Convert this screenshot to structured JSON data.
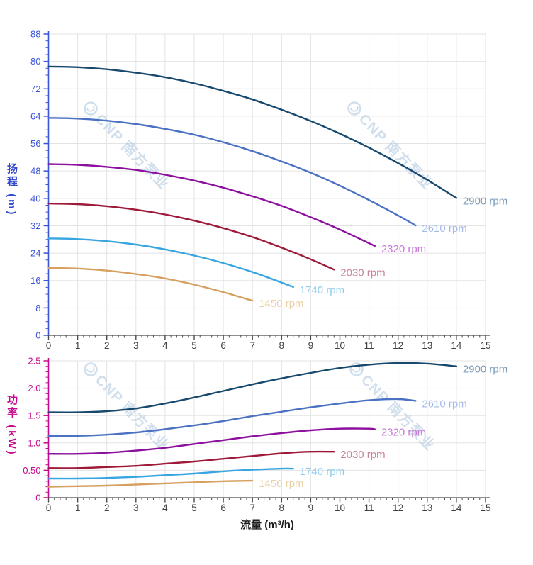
{
  "watermark": {
    "text": "CNP 南方泵业",
    "logo_icon": "cnp-logo-icon",
    "color": "rgba(172,196,223,0.55)"
  },
  "chart_data": [
    {
      "type": "line",
      "title": "",
      "ylabel": "扬程 (m)",
      "xlabel": "",
      "xlim": [
        0,
        15
      ],
      "ylim": [
        0,
        88
      ],
      "x_tick_labels": [
        "0",
        "1",
        "2",
        "3",
        "4",
        "5",
        "6",
        "7",
        "8",
        "9",
        "10",
        "11",
        "12",
        "13",
        "14",
        "15"
      ],
      "y_tick_labels": [
        "0",
        "8",
        "16",
        "24",
        "32",
        "40",
        "48",
        "56",
        "64",
        "72",
        "80",
        "88"
      ],
      "y_major_step": 8,
      "y_minor_step": 2,
      "x_minor_step": 0.2,
      "grid": true,
      "legend_position": "curve-end-labels",
      "axis_color": "#3c55d8",
      "x_axis_color": "#4a4a4a",
      "x_tick_text_color": "#3f3f3f",
      "series": [
        {
          "name": "2900 rpm",
          "color": "#17486e",
          "label_color": "#7e9cba",
          "points": [
            [
              0,
              78.5
            ],
            [
              1,
              78.3
            ],
            [
              2,
              77.7
            ],
            [
              3,
              76.7
            ],
            [
              4,
              75.4
            ],
            [
              5,
              73.6
            ],
            [
              6,
              71.4
            ],
            [
              7,
              68.9
            ],
            [
              8,
              65.9
            ],
            [
              9,
              62.6
            ],
            [
              10,
              58.9
            ],
            [
              11,
              54.8
            ],
            [
              12,
              50.3
            ],
            [
              13,
              45.4
            ],
            [
              14,
              40.1
            ]
          ]
        },
        {
          "name": "2610 rpm",
          "color": "#4a71c2",
          "label_color": "#a6bce8",
          "points": [
            [
              0,
              63.5
            ],
            [
              1,
              63.3
            ],
            [
              2,
              62.7
            ],
            [
              3,
              61.7
            ],
            [
              4,
              60.3
            ],
            [
              5,
              58.6
            ],
            [
              6,
              56.4
            ],
            [
              7,
              53.8
            ],
            [
              8,
              50.8
            ],
            [
              9,
              47.5
            ],
            [
              10,
              43.7
            ],
            [
              11,
              39.5
            ],
            [
              12,
              35.0
            ],
            [
              12.6,
              32.1
            ]
          ]
        },
        {
          "name": "2320 rpm",
          "color": "#8c0f9e",
          "label_color": "#c678d6",
          "points": [
            [
              0,
              50.0
            ],
            [
              1,
              49.8
            ],
            [
              2,
              49.2
            ],
            [
              3,
              48.3
            ],
            [
              4,
              46.9
            ],
            [
              5,
              45.2
            ],
            [
              6,
              43.1
            ],
            [
              7,
              40.6
            ],
            [
              8,
              37.8
            ],
            [
              9,
              34.5
            ],
            [
              10,
              30.9
            ],
            [
              11,
              26.9
            ],
            [
              11.2,
              26.1
            ]
          ]
        },
        {
          "name": "2030 rpm",
          "color": "#9e1a38",
          "label_color": "#c7849a",
          "points": [
            [
              0,
              38.5
            ],
            [
              1,
              38.3
            ],
            [
              2,
              37.7
            ],
            [
              3,
              36.7
            ],
            [
              4,
              35.3
            ],
            [
              5,
              33.5
            ],
            [
              6,
              31.3
            ],
            [
              7,
              28.7
            ],
            [
              8,
              25.6
            ],
            [
              9,
              22.2
            ],
            [
              9.8,
              19.2
            ]
          ]
        },
        {
          "name": "1740 rpm",
          "color": "#36a5e0",
          "label_color": "#8fcbee",
          "points": [
            [
              0,
              28.3
            ],
            [
              1,
              28.1
            ],
            [
              2,
              27.5
            ],
            [
              3,
              26.5
            ],
            [
              4,
              25.1
            ],
            [
              5,
              23.3
            ],
            [
              6,
              21.1
            ],
            [
              7,
              18.5
            ],
            [
              8,
              15.4
            ],
            [
              8.4,
              14.1
            ]
          ]
        },
        {
          "name": "1450 rpm",
          "color": "#d6a160",
          "label_color": "#ead0a6",
          "points": [
            [
              0,
              19.7
            ],
            [
              1,
              19.5
            ],
            [
              2,
              18.9
            ],
            [
              3,
              17.9
            ],
            [
              4,
              16.6
            ],
            [
              5,
              14.8
            ],
            [
              6,
              12.6
            ],
            [
              7,
              10.1
            ]
          ]
        }
      ]
    },
    {
      "type": "line",
      "title": "",
      "ylabel": "功率 (kW)",
      "xlabel": "流量 (m³/h)",
      "xlim": [
        0,
        15
      ],
      "ylim": [
        0,
        2.5
      ],
      "x_tick_labels": [
        "0",
        "1",
        "2",
        "3",
        "4",
        "5",
        "6",
        "7",
        "8",
        "9",
        "10",
        "11",
        "12",
        "13",
        "14",
        "15"
      ],
      "y_tick_labels": [
        "0",
        "0.50",
        "1.0",
        "1.5",
        "2.0",
        "2.5"
      ],
      "y_major_step": 0.5,
      "y_minor_step": 0.1,
      "x_minor_step": 0.2,
      "grid": true,
      "legend_position": "curve-end-labels",
      "axis_color": "#c70a8c",
      "x_axis_color": "#4a4a4a",
      "x_tick_text_color": "#3f3f3f",
      "series": [
        {
          "name": "2900 rpm",
          "color": "#17486e",
          "label_color": "#7e9cba",
          "points": [
            [
              0,
              1.56
            ],
            [
              1,
              1.56
            ],
            [
              2,
              1.58
            ],
            [
              3,
              1.63
            ],
            [
              4,
              1.72
            ],
            [
              5,
              1.83
            ],
            [
              6,
              1.95
            ],
            [
              7,
              2.07
            ],
            [
              8,
              2.18
            ],
            [
              9,
              2.28
            ],
            [
              10,
              2.37
            ],
            [
              11,
              2.43
            ],
            [
              12,
              2.46
            ],
            [
              13,
              2.45
            ],
            [
              14,
              2.4
            ]
          ]
        },
        {
          "name": "2610 rpm",
          "color": "#4a71c2",
          "label_color": "#a6bce8",
          "points": [
            [
              0,
              1.13
            ],
            [
              1,
              1.13
            ],
            [
              2,
              1.15
            ],
            [
              3,
              1.19
            ],
            [
              4,
              1.25
            ],
            [
              5,
              1.32
            ],
            [
              6,
              1.4
            ],
            [
              7,
              1.49
            ],
            [
              8,
              1.57
            ],
            [
              9,
              1.65
            ],
            [
              10,
              1.72
            ],
            [
              11,
              1.78
            ],
            [
              12,
              1.8
            ],
            [
              12.6,
              1.77
            ]
          ]
        },
        {
          "name": "2320 rpm",
          "color": "#8c0f9e",
          "label_color": "#c678d6",
          "points": [
            [
              0,
              0.8
            ],
            [
              1,
              0.8
            ],
            [
              2,
              0.82
            ],
            [
              3,
              0.86
            ],
            [
              4,
              0.91
            ],
            [
              5,
              0.98
            ],
            [
              6,
              1.05
            ],
            [
              7,
              1.12
            ],
            [
              8,
              1.18
            ],
            [
              9,
              1.23
            ],
            [
              10,
              1.26
            ],
            [
              11,
              1.26
            ],
            [
              11.2,
              1.25
            ]
          ]
        },
        {
          "name": "2030 rpm",
          "color": "#9e1a38",
          "label_color": "#c7849a",
          "points": [
            [
              0,
              0.54
            ],
            [
              1,
              0.54
            ],
            [
              2,
              0.56
            ],
            [
              3,
              0.58
            ],
            [
              4,
              0.62
            ],
            [
              5,
              0.66
            ],
            [
              6,
              0.71
            ],
            [
              7,
              0.76
            ],
            [
              8,
              0.81
            ],
            [
              9,
              0.84
            ],
            [
              9.8,
              0.84
            ]
          ]
        },
        {
          "name": "1740 rpm",
          "color": "#36a5e0",
          "label_color": "#8fcbee",
          "points": [
            [
              0,
              0.35
            ],
            [
              1,
              0.35
            ],
            [
              2,
              0.36
            ],
            [
              3,
              0.38
            ],
            [
              4,
              0.41
            ],
            [
              5,
              0.44
            ],
            [
              6,
              0.48
            ],
            [
              7,
              0.51
            ],
            [
              8,
              0.53
            ],
            [
              8.4,
              0.53
            ]
          ]
        },
        {
          "name": "1450 rpm",
          "color": "#d6a160",
          "label_color": "#ead0a6",
          "points": [
            [
              0,
              0.2
            ],
            [
              1,
              0.21
            ],
            [
              2,
              0.22
            ],
            [
              3,
              0.24
            ],
            [
              4,
              0.26
            ],
            [
              5,
              0.28
            ],
            [
              6,
              0.3
            ],
            [
              7,
              0.31
            ]
          ]
        }
      ]
    }
  ]
}
